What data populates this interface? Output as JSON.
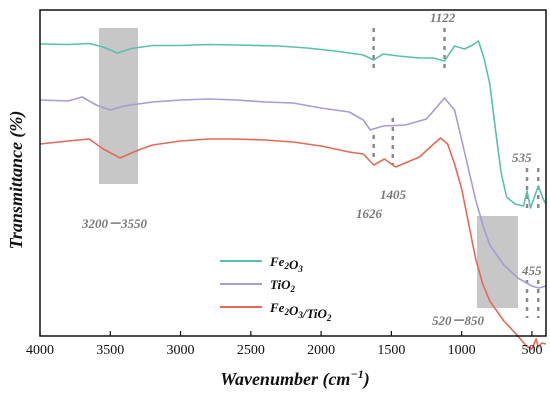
{
  "chart_data": {
    "type": "line",
    "xlabel": "Wavenumber (cm",
    "xlabel_sup": "−1",
    "xlabel_end": ")",
    "ylabel": "Transmittance (%)",
    "xlim": [
      4000,
      400
    ],
    "x_ticks": [
      4000,
      3500,
      3000,
      2500,
      2000,
      1500,
      1000,
      500
    ],
    "grid": false,
    "legend_position": "bottom-center",
    "series": [
      {
        "name": "Fe2O3",
        "legend_parts": [
          [
            "Fe",
            ""
          ],
          [
            "2",
            "sub"
          ],
          [
            "O",
            ""
          ],
          [
            "3",
            "sub"
          ]
        ],
        "color": "#5cbfae",
        "points": [
          [
            4000,
            0.0
          ],
          [
            3800,
            0.005
          ],
          [
            3650,
            -0.005
          ],
          [
            3550,
            0.03
          ],
          [
            3450,
            0.09
          ],
          [
            3350,
            0.045
          ],
          [
            3200,
            0.015
          ],
          [
            3000,
            0.015
          ],
          [
            2800,
            0.005
          ],
          [
            2600,
            0.01
          ],
          [
            2300,
            0.02
          ],
          [
            2100,
            0.04
          ],
          [
            1900,
            0.07
          ],
          [
            1700,
            0.11
          ],
          [
            1626,
            0.16
          ],
          [
            1560,
            0.1
          ],
          [
            1450,
            0.12
          ],
          [
            1300,
            0.14
          ],
          [
            1200,
            0.14
          ],
          [
            1122,
            0.17
          ],
          [
            1050,
            0.02
          ],
          [
            980,
            0.05
          ],
          [
            920,
            0.01
          ],
          [
            880,
            -0.03
          ],
          [
            840,
            0.15
          ],
          [
            800,
            0.4
          ],
          [
            760,
            0.85
          ],
          [
            720,
            1.28
          ],
          [
            680,
            1.53
          ],
          [
            620,
            1.6
          ],
          [
            560,
            1.62
          ],
          [
            535,
            1.47
          ],
          [
            510,
            1.64
          ],
          [
            455,
            1.42
          ],
          [
            420,
            1.55
          ],
          [
            400,
            1.6
          ]
        ]
      },
      {
        "name": "TiO2",
        "legend_parts": [
          [
            "TiO",
            ""
          ],
          [
            "2",
            "sub"
          ]
        ],
        "color": "#a79bd6",
        "points": [
          [
            4000,
            0.0
          ],
          [
            3800,
            0.01
          ],
          [
            3700,
            -0.03
          ],
          [
            3600,
            0.05
          ],
          [
            3500,
            0.1
          ],
          [
            3400,
            0.06
          ],
          [
            3200,
            0.02
          ],
          [
            3000,
            0.0
          ],
          [
            2800,
            -0.01
          ],
          [
            2600,
            0.0
          ],
          [
            2400,
            0.02
          ],
          [
            2200,
            0.03
          ],
          [
            2000,
            0.08
          ],
          [
            1800,
            0.12
          ],
          [
            1700,
            0.2
          ],
          [
            1650,
            0.3
          ],
          [
            1560,
            0.26
          ],
          [
            1400,
            0.25
          ],
          [
            1250,
            0.19
          ],
          [
            1122,
            -0.02
          ],
          [
            1050,
            0.1
          ],
          [
            1000,
            0.4
          ],
          [
            950,
            0.7
          ],
          [
            900,
            1.0
          ],
          [
            850,
            1.25
          ],
          [
            800,
            1.45
          ],
          [
            700,
            1.65
          ],
          [
            600,
            1.78
          ],
          [
            500,
            1.86
          ],
          [
            450,
            1.88
          ],
          [
            400,
            1.86
          ]
        ]
      },
      {
        "name": "Fe2O3/TiO2",
        "legend_parts": [
          [
            "Fe",
            ""
          ],
          [
            "2",
            "sub"
          ],
          [
            "O",
            ""
          ],
          [
            "3",
            "sub"
          ],
          [
            "/TiO",
            ""
          ],
          [
            "2",
            "sub"
          ]
        ],
        "color": "#e26b58",
        "points": [
          [
            4000,
            0.0
          ],
          [
            3800,
            -0.03
          ],
          [
            3650,
            -0.05
          ],
          [
            3550,
            0.05
          ],
          [
            3430,
            0.14
          ],
          [
            3300,
            0.06
          ],
          [
            3200,
            0.01
          ],
          [
            3000,
            -0.03
          ],
          [
            2800,
            -0.05
          ],
          [
            2600,
            -0.05
          ],
          [
            2400,
            -0.04
          ],
          [
            2200,
            -0.02
          ],
          [
            2000,
            0.02
          ],
          [
            1800,
            0.08
          ],
          [
            1700,
            0.1
          ],
          [
            1626,
            0.21
          ],
          [
            1550,
            0.15
          ],
          [
            1470,
            0.23
          ],
          [
            1300,
            0.13
          ],
          [
            1200,
            0.0
          ],
          [
            1150,
            -0.06
          ],
          [
            1100,
            0.0
          ],
          [
            1050,
            0.2
          ],
          [
            1000,
            0.45
          ],
          [
            950,
            0.8
          ],
          [
            900,
            1.15
          ],
          [
            850,
            1.4
          ],
          [
            800,
            1.57
          ],
          [
            700,
            1.77
          ],
          [
            600,
            1.92
          ],
          [
            540,
            2.02
          ],
          [
            500,
            2.05
          ],
          [
            470,
            1.95
          ],
          [
            455,
            2.03
          ],
          [
            430,
            1.99
          ],
          [
            400,
            2.0
          ]
        ]
      }
    ],
    "annotations": [
      {
        "label": "1122",
        "x": 1122
      },
      {
        "label": "1626",
        "x": 1626
      },
      {
        "label": "1405",
        "x": 1490
      },
      {
        "label": "535",
        "x": 535
      },
      {
        "label": "455",
        "x": 455
      },
      {
        "label": "3200－3550",
        "x_range": [
          3200,
          3550
        ]
      },
      {
        "label": "520－850",
        "x_range": [
          520,
          850
        ]
      }
    ]
  }
}
